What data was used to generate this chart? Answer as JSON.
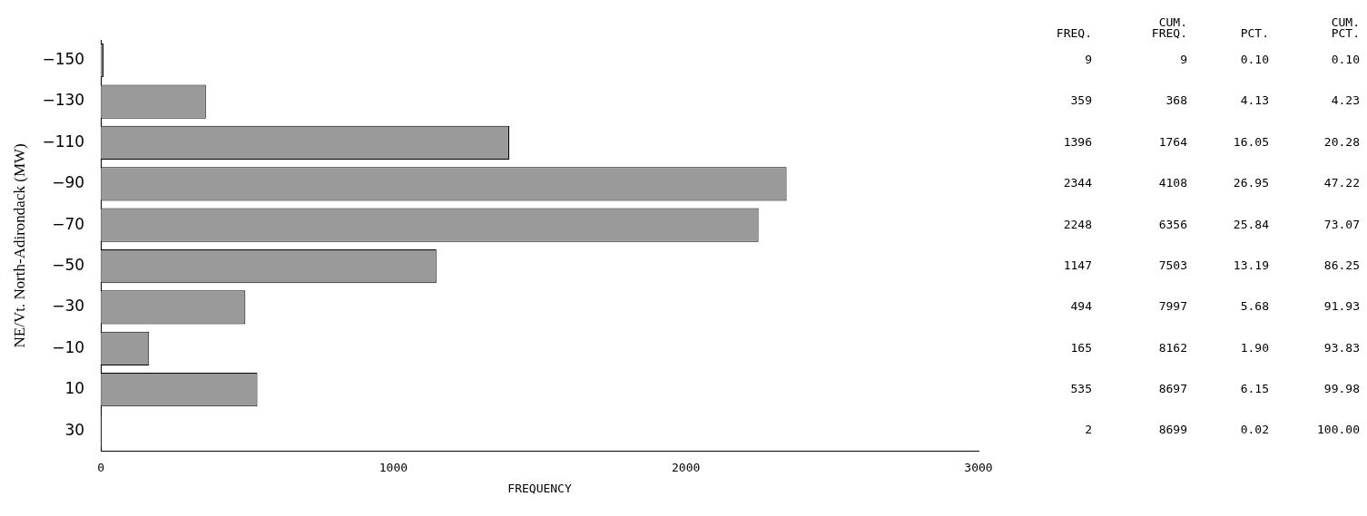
{
  "chart_data": {
    "type": "bar",
    "orientation": "horizontal",
    "categories": [
      "−150",
      "−130",
      "−110",
      "−90",
      "−70",
      "−50",
      "−30",
      "−10",
      "10",
      "30"
    ],
    "values": [
      9,
      359,
      1396,
      2344,
      2248,
      1147,
      494,
      165,
      535,
      2
    ],
    "color": "#9a9a9a",
    "xlim": [
      0,
      3000
    ],
    "xticks": [
      0,
      1000,
      2000,
      3000
    ],
    "xlabel": "FREQUENCY",
    "ylabel": "NE/Vt. North-Adirondack (MW)",
    "grid": false,
    "legend": false,
    "data_labels": true,
    "annotations": [
      "FREQ.",
      "CUM. FREQ.",
      "PCT.",
      "CUM. PCT.",
      "9",
      "0.10",
      "0.10",
      "368",
      "4.13",
      "4.23",
      "1764",
      "16.05",
      "20.28",
      "4108",
      "26.95",
      "47.22",
      "6356",
      "25.84",
      "73.07",
      "7503",
      "13.19",
      "86.25",
      "7997",
      "5.68",
      "91.93",
      "8162",
      "1.90",
      "93.83",
      "8697",
      "6.15",
      "99.98",
      "8699",
      "0.02",
      "100.00"
    ]
  }
}
